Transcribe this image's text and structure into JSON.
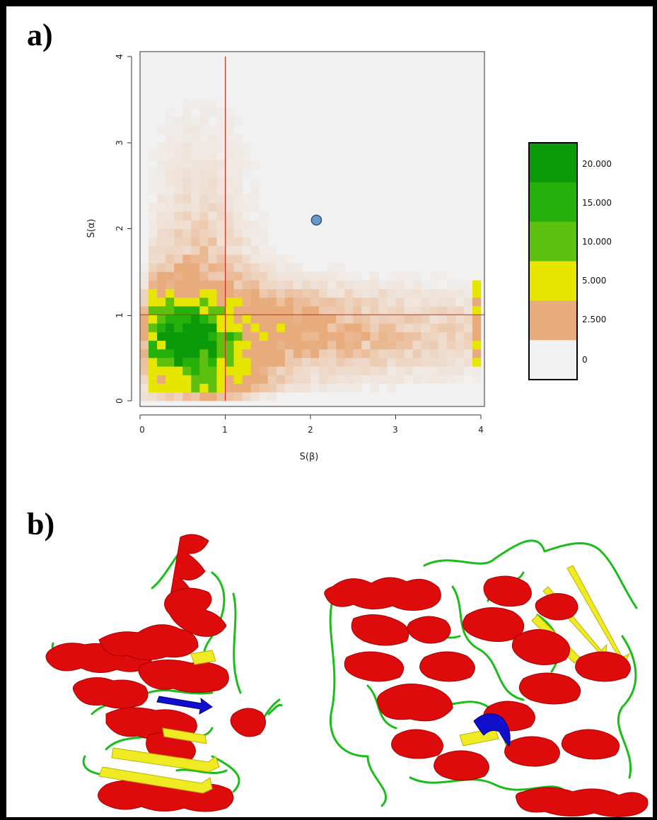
{
  "panels": {
    "a_label": "a)",
    "b_label": "b)"
  },
  "chart_data": {
    "type": "heatmap",
    "title": "",
    "xlabel": "S(β)",
    "ylabel": "S(α)",
    "xlim": [
      0,
      4
    ],
    "ylim": [
      0,
      4
    ],
    "xticks": [
      "0",
      "1",
      "2",
      "3",
      "4"
    ],
    "yticks": [
      "0",
      "1",
      "2",
      "3",
      "4"
    ],
    "bin_width": 0.1,
    "background_color": "#f1f1f1",
    "reference_lines": {
      "x": 1,
      "y": 1,
      "color": "#e02020"
    },
    "highlight_point": {
      "x": 2.07,
      "y": 2.1,
      "color": "#6d95c8"
    },
    "color_scale": {
      "bins": [
        {
          "label": "0",
          "color": "#f1f1f1"
        },
        {
          "label": "2.500",
          "color": "#e8ab7c"
        },
        {
          "label": "5.000",
          "color": "#e6e600"
        },
        {
          "label": "10.000",
          "color": "#5dbf0e"
        },
        {
          "label": "15.000",
          "color": "#26b00b"
        },
        {
          "label": "20.000",
          "color": "#0a9a0a"
        }
      ],
      "legend_position": "right"
    },
    "density": "approximate counts concentrated near S(α)≈0.5–1.0, S(β)≈0.3–1.0, decaying toward larger S(β) and S(α)"
  },
  "structures": {
    "left": {
      "helix_color": "#dd0b0b",
      "sheet_color": "#f0ea24",
      "loop_color": "#1bbd1b",
      "highlight_color": "#1010cc"
    },
    "right": {
      "helix_color": "#dd0b0b",
      "sheet_color": "#f0ea24",
      "loop_color": "#1bbd1b",
      "highlight_color": "#1010cc"
    }
  }
}
